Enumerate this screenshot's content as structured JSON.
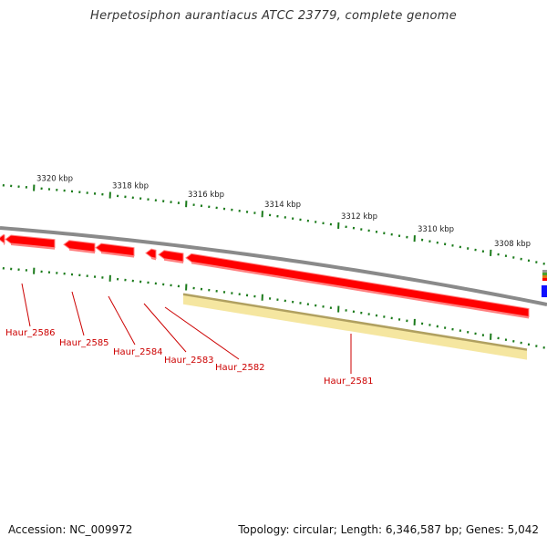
{
  "title": "Herpetosiphon aurantiacus ATCC 23779, complete genome",
  "footer": {
    "accession": "Accession: NC_009972",
    "summary": "Topology: circular; Length: 6,346,587 bp; Genes: 5,042"
  },
  "colors": {
    "backbone": "#8a8a8a",
    "gene_forward": "#ff0000",
    "gene_forward_light": "#ff8080",
    "cds_feature": "#f5e6a0",
    "cds_feature_edge": "#b0a060",
    "tick": "#1a7a1a",
    "label_kbp": "#222222",
    "label_gene": "#cc0000",
    "other_feature_blue": "#1010ff",
    "other_feature_gray": "#999999",
    "other_feature_green": "#4aa02a",
    "other_feature_orange": "#e07a10"
  },
  "scale_labels": [
    "3320 kbp",
    "3318 kbp",
    "3316 kbp",
    "3314 kbp",
    "3312 kbp",
    "3310 kbp",
    "3308 kbp"
  ],
  "genes": [
    {
      "name": "Haur_2586"
    },
    {
      "name": "Haur_2585"
    },
    {
      "name": "Haur_2584"
    },
    {
      "name": "Haur_2583"
    },
    {
      "name": "Haur_2582"
    },
    {
      "name": "Haur_2581"
    }
  ]
}
